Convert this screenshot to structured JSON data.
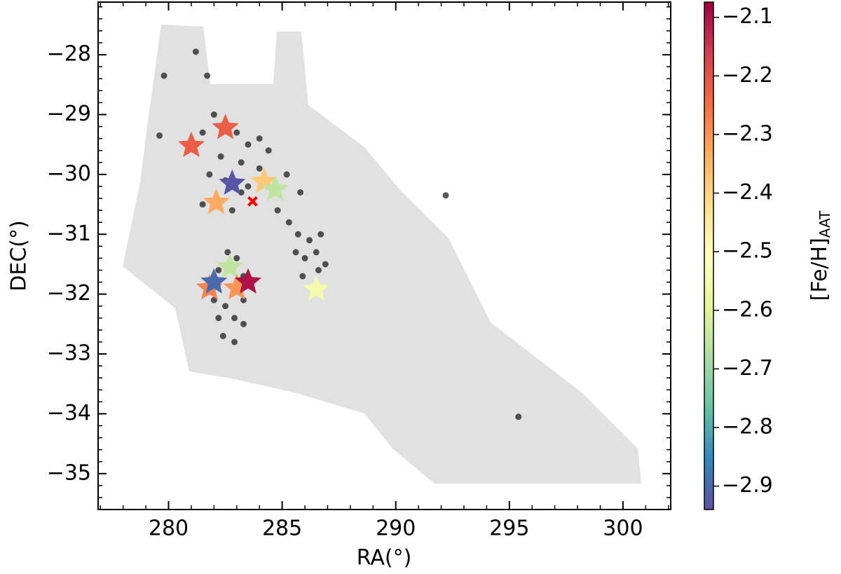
{
  "chart_data": {
    "type": "scatter",
    "xlabel": "RA(°)",
    "ylabel": "DEC(°)",
    "xlim": [
      276.9,
      302.1
    ],
    "ylim": [
      -35.6,
      -27.12
    ],
    "xticks": [
      280,
      285,
      290,
      295,
      300
    ],
    "yticks": [
      {
        "value": -28,
        "label": "−28"
      },
      {
        "value": -29,
        "label": "−29"
      },
      {
        "value": -30,
        "label": "−30"
      },
      {
        "value": -31,
        "label": "−31"
      },
      {
        "value": -32,
        "label": "−32"
      },
      {
        "value": -33,
        "label": "−33"
      },
      {
        "value": -34,
        "label": "−34"
      },
      {
        "value": -35,
        "label": "−35"
      }
    ],
    "members": {
      "color": "#000000",
      "x": [
        281.5,
        282.0,
        283.0,
        283.5,
        284.0,
        284.4,
        282.3,
        283.2,
        284.0,
        281.8,
        282.5,
        283.5,
        285.2,
        285.8,
        281.5,
        282.8,
        283.2,
        284.8,
        285.3,
        285.7,
        286.2,
        286.0,
        286.5,
        285.9,
        286.6,
        286.3,
        286.9,
        285.6,
        286.7,
        282.6,
        283.0,
        282.2,
        283.3,
        282.0,
        282.5,
        283.3,
        282.2,
        282.9,
        282.4,
        282.9,
        283.3,
        281.2,
        279.8,
        281.7,
        279.6,
        292.2,
        295.4
      ],
      "y": [
        -29.3,
        -29.0,
        -29.3,
        -29.5,
        -29.4,
        -29.6,
        -29.7,
        -29.8,
        -29.9,
        -30.0,
        -30.1,
        -30.2,
        -30.0,
        -30.3,
        -30.5,
        -30.6,
        -30.3,
        -30.6,
        -30.8,
        -31.0,
        -31.1,
        -31.4,
        -31.3,
        -31.7,
        -31.6,
        -31.9,
        -31.5,
        -31.3,
        -31.0,
        -31.3,
        -31.4,
        -31.6,
        -31.7,
        -32.1,
        -32.2,
        -32.1,
        -32.4,
        -32.4,
        -32.7,
        -32.8,
        -32.5,
        -27.95,
        -28.35,
        -28.35,
        -29.35,
        -30.35,
        -34.05
      ]
    },
    "stars": {
      "x": [
        281.0,
        282.5,
        282.8,
        284.2,
        284.7,
        282.1,
        286.5,
        282.7,
        281.8,
        282.0,
        283.0,
        283.5
      ],
      "y": [
        -29.52,
        -29.22,
        -30.15,
        -30.12,
        -30.25,
        -30.47,
        -31.92,
        -31.55,
        -31.9,
        -31.8,
        -31.9,
        -31.8
      ],
      "values": [
        -2.22,
        -2.22,
        -2.93,
        -2.38,
        -2.65,
        -2.33,
        -2.55,
        -2.65,
        -2.28,
        -2.9,
        -2.3,
        -2.1
      ]
    },
    "center": {
      "x": 283.7,
      "y": -30.45,
      "color": "#ff0000"
    },
    "colorbar": {
      "label": "[Fe/H]",
      "label_sub": "AAT",
      "lim": [
        -2.94,
        -2.074
      ],
      "ticks": [
        {
          "value": -2.1,
          "label": "−2.1"
        },
        {
          "value": -2.2,
          "label": "−2.2"
        },
        {
          "value": -2.3,
          "label": "−2.3"
        },
        {
          "value": -2.4,
          "label": "−2.4"
        },
        {
          "value": -2.5,
          "label": "−2.5"
        },
        {
          "value": -2.6,
          "label": "−2.6"
        },
        {
          "value": -2.7,
          "label": "−2.7"
        },
        {
          "value": -2.8,
          "label": "−2.8"
        },
        {
          "value": -2.9,
          "label": "−2.9"
        }
      ],
      "colormap": [
        "#5e4fa2",
        "#3288bd",
        "#66c2a5",
        "#abdda4",
        "#e6f598",
        "#ffffbf",
        "#fee08b",
        "#fdae61",
        "#f46d43",
        "#d53e4f",
        "#9e0142"
      ]
    }
  }
}
